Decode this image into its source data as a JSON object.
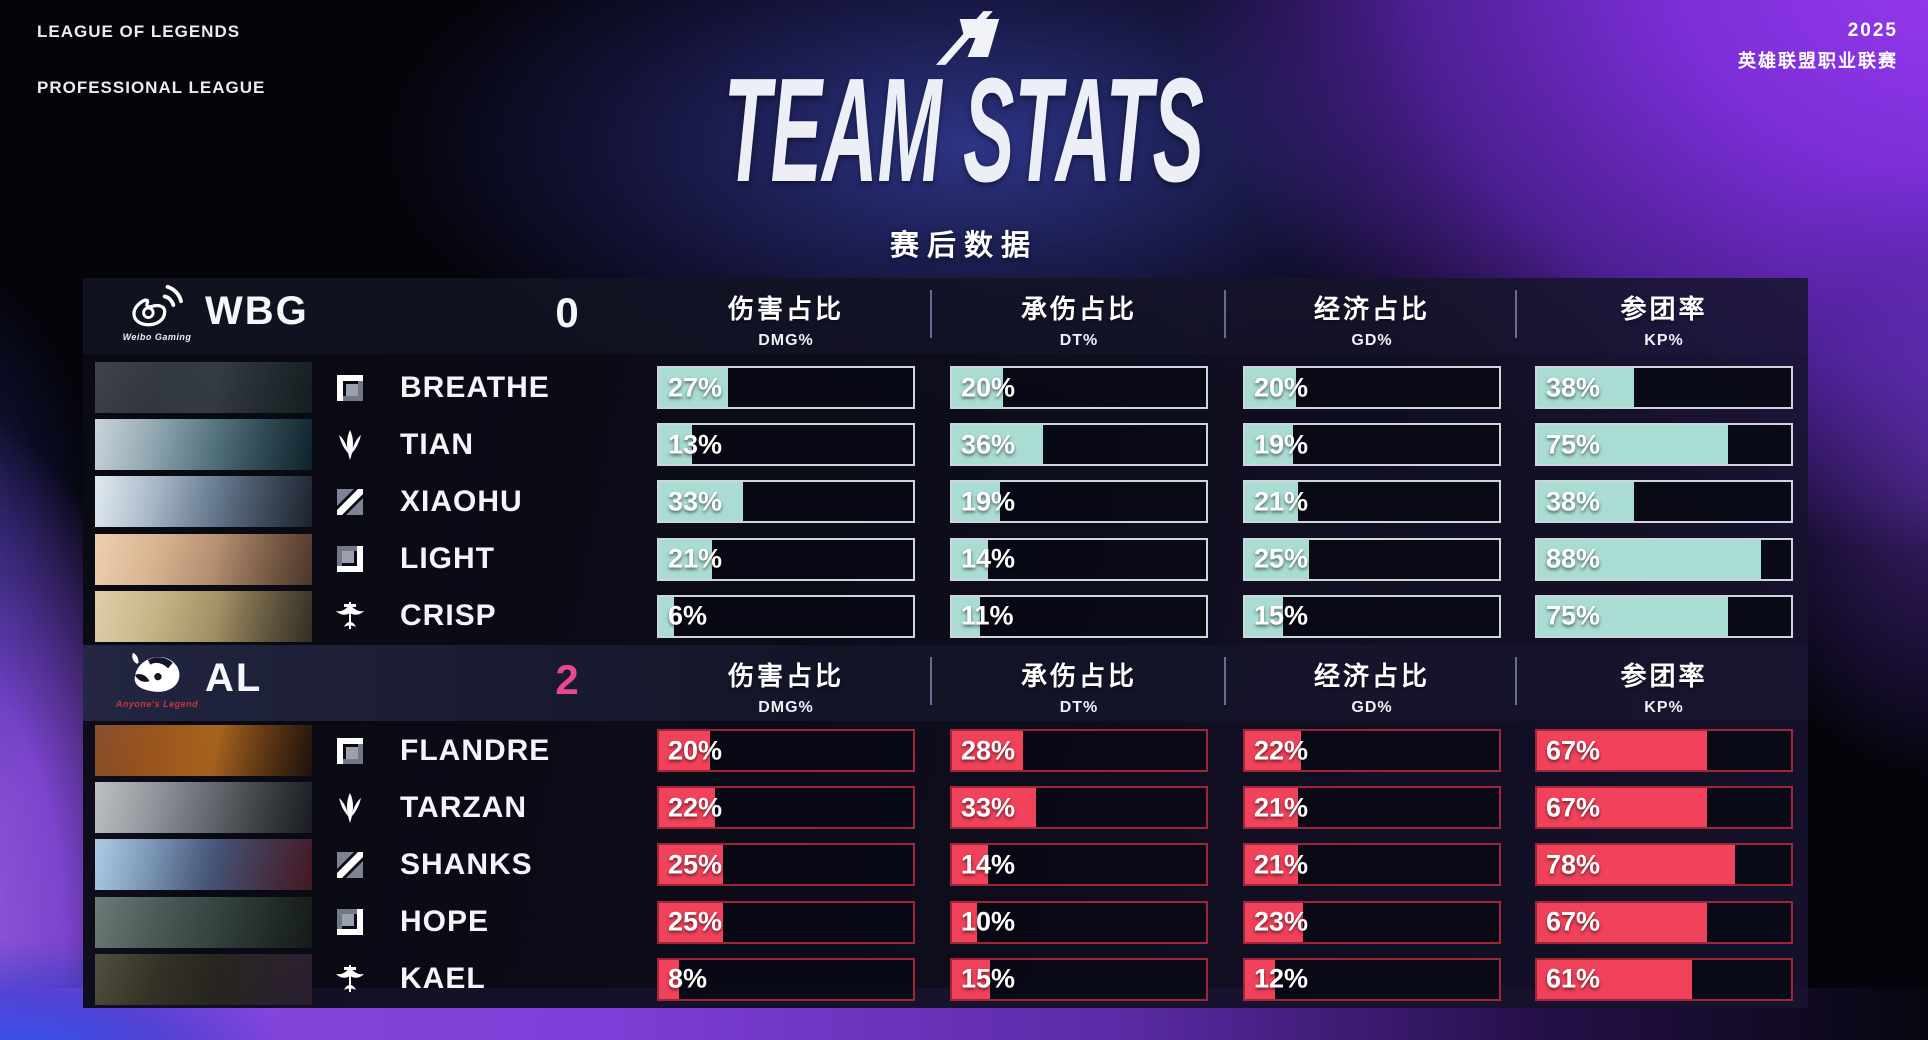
{
  "header": {
    "league_line1": "LEAGUE OF LEGENDS",
    "league_line2": "PROFESSIONAL LEAGUE",
    "year": "2025",
    "league_cn": "英雄联盟职业联赛",
    "title": "TEAM STATS",
    "subtitle_cn": "赛后数据"
  },
  "columns": [
    {
      "cn": "伤害占比",
      "en": "DMG%"
    },
    {
      "cn": "承伤占比",
      "en": "DT%"
    },
    {
      "cn": "经济占比",
      "en": "GD%"
    },
    {
      "cn": "参团率",
      "en": "KP%"
    }
  ],
  "teams": [
    {
      "name": "WBG",
      "logo": "wbg",
      "logo_caption": "Weibo Gaming",
      "caption_color": "#eef0f4",
      "score": "0",
      "score_color": "#f4f6fa",
      "bar_fill": "#a9dcd3",
      "bar_border": "#cfd5dc",
      "players": [
        {
          "name": "BREATHE",
          "role": "top",
          "art": [
            "#2a2e36",
            "#3a414a",
            "#1c2a2c"
          ],
          "stats": [
            {
              "v": 27,
              "label": "27%"
            },
            {
              "v": 20,
              "label": "20%"
            },
            {
              "v": 20,
              "label": "20%"
            },
            {
              "v": 38,
              "label": "38%"
            }
          ]
        },
        {
          "name": "TIAN",
          "role": "jungle",
          "art": [
            "#c3ced6",
            "#5c7e8a",
            "#15303c"
          ],
          "stats": [
            {
              "v": 13,
              "label": "13%"
            },
            {
              "v": 36,
              "label": "36%"
            },
            {
              "v": 19,
              "label": "19%"
            },
            {
              "v": 75,
              "label": "75%"
            }
          ]
        },
        {
          "name": "XIAOHU",
          "role": "mid",
          "art": [
            "#dde7ee",
            "#71879f",
            "#283140"
          ],
          "stats": [
            {
              "v": 33,
              "label": "33%"
            },
            {
              "v": 19,
              "label": "19%"
            },
            {
              "v": 21,
              "label": "21%"
            },
            {
              "v": 38,
              "label": "38%"
            }
          ]
        },
        {
          "name": "LIGHT",
          "role": "bot",
          "art": [
            "#e9c9a6",
            "#c79e7c",
            "#6b4b3a"
          ],
          "stats": [
            {
              "v": 21,
              "label": "21%"
            },
            {
              "v": 14,
              "label": "14%"
            },
            {
              "v": 25,
              "label": "25%"
            },
            {
              "v": 88,
              "label": "88%"
            }
          ]
        },
        {
          "name": "CRISP",
          "role": "support",
          "art": [
            "#d9c9a0",
            "#b5a071",
            "#474031"
          ],
          "stats": [
            {
              "v": 6,
              "label": "6%"
            },
            {
              "v": 11,
              "label": "11%"
            },
            {
              "v": 15,
              "label": "15%"
            },
            {
              "v": 75,
              "label": "75%"
            }
          ]
        }
      ]
    },
    {
      "name": "AL",
      "logo": "al",
      "logo_caption": "Anyone's Legend",
      "caption_color": "#c23a3a",
      "score": "2",
      "score_color": "#e8488e",
      "bar_fill": "#f0425a",
      "bar_border": "#9e2636",
      "players": [
        {
          "name": "FLANDRE",
          "role": "top",
          "art": [
            "#7c3c16",
            "#b86c22",
            "#2c1a10"
          ],
          "stats": [
            {
              "v": 20,
              "label": "20%"
            },
            {
              "v": 28,
              "label": "28%"
            },
            {
              "v": 22,
              "label": "22%"
            },
            {
              "v": 67,
              "label": "67%"
            }
          ]
        },
        {
          "name": "TARZAN",
          "role": "jungle",
          "art": [
            "#b4b9be",
            "#6b7177",
            "#24272d"
          ],
          "stats": [
            {
              "v": 22,
              "label": "22%"
            },
            {
              "v": 33,
              "label": "33%"
            },
            {
              "v": 21,
              "label": "21%"
            },
            {
              "v": 67,
              "label": "67%"
            }
          ]
        },
        {
          "name": "SHANKS",
          "role": "mid",
          "art": [
            "#a3c6e0",
            "#4c5c82",
            "#5c2232"
          ],
          "stats": [
            {
              "v": 25,
              "label": "25%"
            },
            {
              "v": 14,
              "label": "14%"
            },
            {
              "v": 21,
              "label": "21%"
            },
            {
              "v": 78,
              "label": "78%"
            }
          ]
        },
        {
          "name": "HOPE",
          "role": "bot",
          "art": [
            "#5c6c68",
            "#3b4b47",
            "#1d2521"
          ],
          "stats": [
            {
              "v": 25,
              "label": "25%"
            },
            {
              "v": 10,
              "label": "10%"
            },
            {
              "v": 23,
              "label": "23%"
            },
            {
              "v": 67,
              "label": "67%"
            }
          ]
        },
        {
          "name": "KAEL",
          "role": "support",
          "art": [
            "#3e3c2a",
            "#2b2922",
            "#3b2a42"
          ],
          "stats": [
            {
              "v": 8,
              "label": "8%"
            },
            {
              "v": 15,
              "label": "15%"
            },
            {
              "v": 12,
              "label": "12%"
            },
            {
              "v": 61,
              "label": "61%"
            }
          ]
        }
      ]
    }
  ],
  "chart_data": {
    "type": "bar",
    "title": "TEAM STATS",
    "subtitle": "赛后数据",
    "metrics": [
      "DMG%",
      "DT%",
      "GD%",
      "KP%"
    ],
    "metric_names_cn": [
      "伤害占比",
      "承伤占比",
      "经济占比",
      "参团率"
    ],
    "xlim": [
      0,
      100
    ],
    "teams": [
      {
        "name": "WBG",
        "score": 0,
        "bar_color": "#a9dcd3",
        "players": [
          "BREATHE",
          "TIAN",
          "XIAOHU",
          "LIGHT",
          "CRISP"
        ],
        "values": {
          "DMG%": [
            27,
            13,
            33,
            21,
            6
          ],
          "DT%": [
            20,
            36,
            19,
            14,
            11
          ],
          "GD%": [
            20,
            19,
            21,
            25,
            15
          ],
          "KP%": [
            38,
            75,
            38,
            88,
            75
          ]
        }
      },
      {
        "name": "AL",
        "score": 2,
        "bar_color": "#f0425a",
        "players": [
          "FLANDRE",
          "TARZAN",
          "SHANKS",
          "HOPE",
          "KAEL"
        ],
        "values": {
          "DMG%": [
            20,
            22,
            25,
            25,
            8
          ],
          "DT%": [
            28,
            33,
            14,
            10,
            15
          ],
          "GD%": [
            22,
            21,
            21,
            23,
            12
          ],
          "KP%": [
            67,
            67,
            78,
            67,
            61
          ]
        }
      }
    ]
  }
}
